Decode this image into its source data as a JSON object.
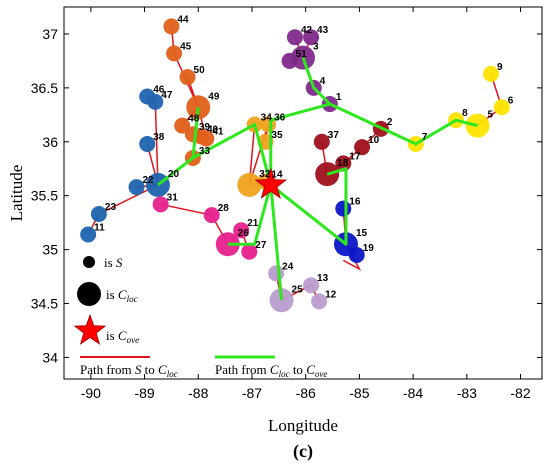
{
  "chart_data": {
    "type": "scatter",
    "xlabel": "Longitude",
    "ylabel": "Latitude",
    "xlim": [
      -90.5,
      -81.6
    ],
    "ylim": [
      33.8,
      37.25
    ],
    "xticks": [
      -90,
      -89,
      -88,
      -87,
      -86,
      -85,
      -84,
      -83,
      -82
    ],
    "yticks": [
      34,
      34.5,
      35,
      35.5,
      36,
      36.5,
      37
    ],
    "caption": "(c)",
    "legend": {
      "s_label": "is S",
      "cloc_label": "is C_loc",
      "cove_label": "is C_ove",
      "red_path_label": "Path from S to C_loc",
      "green_path_label": "Path from C_loc to C_ove"
    },
    "clusters": [
      {
        "color": "#ffe400",
        "members": [
          {
            "id": 9,
            "x": -82.55,
            "y": 36.63,
            "big": false
          },
          {
            "id": 6,
            "x": -82.35,
            "y": 36.32,
            "big": false
          },
          {
            "id": 5,
            "x": -82.8,
            "y": 36.15,
            "big": true
          },
          {
            "id": 8,
            "x": -83.2,
            "y": 36.2,
            "big": false
          },
          {
            "id": 7,
            "x": -83.95,
            "y": 35.98,
            "big": false
          }
        ],
        "center": 5
      },
      {
        "color": "#a0101e",
        "members": [
          {
            "id": 2,
            "x": -84.6,
            "y": 36.12,
            "big": false
          },
          {
            "id": 10,
            "x": -84.95,
            "y": 35.95,
            "big": false
          },
          {
            "id": 17,
            "x": -85.3,
            "y": 35.8,
            "big": false
          },
          {
            "id": 37,
            "x": -85.7,
            "y": 36.0,
            "big": false
          },
          {
            "id": 18,
            "x": -85.6,
            "y": 35.7,
            "big": true
          }
        ],
        "center": 18
      },
      {
        "color": "#7f2b8c",
        "members": [
          {
            "id": 42,
            "x": -86.2,
            "y": 36.97,
            "big": false
          },
          {
            "id": 43,
            "x": -85.9,
            "y": 36.97,
            "big": false
          },
          {
            "id": 51,
            "x": -86.3,
            "y": 36.75,
            "big": false
          },
          {
            "id": 3,
            "x": -86.05,
            "y": 36.78,
            "big": true
          },
          {
            "id": 4,
            "x": -85.85,
            "y": 36.5,
            "big": false
          },
          {
            "id": 1,
            "x": -85.55,
            "y": 36.35,
            "big": false
          }
        ],
        "center": 3
      },
      {
        "color": "#e0601a",
        "members": [
          {
            "id": 44,
            "x": -88.5,
            "y": 37.07,
            "big": false
          },
          {
            "id": 45,
            "x": -88.45,
            "y": 36.82,
            "big": false
          },
          {
            "id": 50,
            "x": -88.2,
            "y": 36.6,
            "big": false
          },
          {
            "id": 49,
            "x": -88.0,
            "y": 36.32,
            "big": true
          },
          {
            "id": 48,
            "x": -88.3,
            "y": 36.15,
            "big": false
          },
          {
            "id": 39,
            "x": -88.1,
            "y": 36.07,
            "big": false
          },
          {
            "id": 40,
            "x": -87.95,
            "y": 36.05,
            "big": false
          },
          {
            "id": 41,
            "x": -87.85,
            "y": 36.03,
            "big": false
          },
          {
            "id": 33,
            "x": -88.1,
            "y": 35.85,
            "big": false
          }
        ],
        "center": 49
      },
      {
        "color": "#1e64b0",
        "members": [
          {
            "id": 46,
            "x": -88.95,
            "y": 36.42,
            "big": false
          },
          {
            "id": 47,
            "x": -88.8,
            "y": 36.37,
            "big": false
          },
          {
            "id": 38,
            "x": -88.95,
            "y": 35.98,
            "big": false
          },
          {
            "id": 20,
            "x": -88.75,
            "y": 35.6,
            "big": true
          },
          {
            "id": 22,
            "x": -89.15,
            "y": 35.58,
            "big": false
          },
          {
            "id": 23,
            "x": -89.85,
            "y": 35.33,
            "big": false
          },
          {
            "id": 11,
            "x": -90.05,
            "y": 35.14,
            "big": false
          }
        ],
        "center": 20
      },
      {
        "color": "#f0a21e",
        "members": [
          {
            "id": 34,
            "x": -86.95,
            "y": 36.16,
            "big": false
          },
          {
            "id": 36,
            "x": -86.7,
            "y": 36.16,
            "big": false
          },
          {
            "id": 35,
            "x": -86.75,
            "y": 36.0,
            "big": false
          },
          {
            "id": 32,
            "x": -87.05,
            "y": 35.6,
            "big": true
          },
          {
            "id": 14,
            "x": -86.75,
            "y": 35.63,
            "big": false
          }
        ],
        "center": 32
      },
      {
        "color": "#e8208e",
        "members": [
          {
            "id": 31,
            "x": -88.7,
            "y": 35.42,
            "big": false
          },
          {
            "id": 28,
            "x": -87.75,
            "y": 35.32,
            "big": false
          },
          {
            "id": 26,
            "x": -87.45,
            "y": 35.05,
            "big": true
          },
          {
            "id": 21,
            "x": -87.2,
            "y": 35.18,
            "big": false
          },
          {
            "id": 27,
            "x": -87.05,
            "y": 34.98,
            "big": false
          }
        ],
        "center": 26
      },
      {
        "color": "#0b16c8",
        "members": [
          {
            "id": 16,
            "x": -85.3,
            "y": 35.38,
            "big": false
          },
          {
            "id": 15,
            "x": -85.25,
            "y": 35.05,
            "big": true
          },
          {
            "id": 19,
            "x": -85.05,
            "y": 34.95,
            "big": false
          }
        ],
        "center": 15
      },
      {
        "color": "#b99ccd",
        "members": [
          {
            "id": 24,
            "x": -86.55,
            "y": 34.78,
            "big": false
          },
          {
            "id": 13,
            "x": -85.9,
            "y": 34.67,
            "big": false
          },
          {
            "id": 25,
            "x": -86.45,
            "y": 34.53,
            "big": true
          },
          {
            "id": 12,
            "x": -85.75,
            "y": 34.52,
            "big": false
          }
        ],
        "center": 25
      }
    ],
    "overall_center": {
      "x": -86.65,
      "y": 35.6
    },
    "green_path_nodes": [
      {
        "x": -86.05,
        "y": 36.78
      },
      {
        "x": -85.85,
        "y": 36.5
      },
      {
        "x": -85.55,
        "y": 36.35
      },
      {
        "x": -86.65,
        "y": 36.2
      },
      {
        "x": -86.65,
        "y": 35.6
      }
    ],
    "green_path_nodes_b": [
      {
        "x": -82.8,
        "y": 36.15
      },
      {
        "x": -83.2,
        "y": 36.2
      },
      {
        "x": -83.95,
        "y": 35.98
      },
      {
        "x": -85.55,
        "y": 36.35
      }
    ],
    "green_path_nodes_c": [
      {
        "x": -88.0,
        "y": 36.32
      },
      {
        "x": -88.1,
        "y": 35.85
      },
      {
        "x": -86.95,
        "y": 36.16
      },
      {
        "x": -86.65,
        "y": 35.6
      }
    ],
    "green_path_nodes_d": [
      {
        "x": -88.75,
        "y": 35.6
      },
      {
        "x": -88.1,
        "y": 35.85
      }
    ],
    "green_path_nodes_e": [
      {
        "x": -85.6,
        "y": 35.7
      },
      {
        "x": -85.25,
        "y": 35.75
      },
      {
        "x": -85.25,
        "y": 35.05
      },
      {
        "x": -86.65,
        "y": 35.6
      }
    ],
    "green_path_nodes_f": [
      {
        "x": -87.45,
        "y": 35.05
      },
      {
        "x": -86.95,
        "y": 35.05
      },
      {
        "x": -86.65,
        "y": 35.6
      }
    ],
    "green_path_nodes_g": [
      {
        "x": -86.45,
        "y": 34.53
      },
      {
        "x": -86.65,
        "y": 35.6
      }
    ],
    "red_paths": [
      [
        -82.55,
        36.63,
        -82.35,
        36.32,
        -82.8,
        36.15,
        -83.2,
        36.2,
        -83.95,
        35.98
      ],
      [
        -84.6,
        36.12,
        -84.95,
        35.95,
        -85.3,
        35.8,
        -85.6,
        35.7,
        -85.7,
        36.0
      ],
      [
        -86.2,
        36.97,
        -86.05,
        36.78,
        -85.9,
        36.97
      ],
      [
        -86.3,
        36.75,
        -86.05,
        36.78
      ],
      [
        -85.55,
        36.35,
        -84.6,
        36.12
      ],
      [
        -88.5,
        37.07,
        -88.45,
        36.82,
        -88.0,
        36.32,
        -88.2,
        36.6
      ],
      [
        -88.3,
        36.15,
        -88.0,
        36.32,
        -87.85,
        36.03,
        -88.1,
        36.07,
        -87.95,
        36.05
      ],
      [
        -88.1,
        35.85,
        -88.0,
        36.32
      ],
      [
        -88.95,
        36.42,
        -88.8,
        36.37,
        -88.75,
        35.6,
        -88.95,
        35.98
      ],
      [
        -89.15,
        35.58,
        -88.75,
        35.6,
        -89.85,
        35.33,
        -90.05,
        35.14
      ],
      [
        -86.95,
        36.16,
        -87.05,
        35.6,
        -86.7,
        36.16,
        -86.75,
        36.0
      ],
      [
        -86.75,
        35.63,
        -87.05,
        35.6
      ],
      [
        -88.7,
        35.42,
        -87.75,
        35.32,
        -87.45,
        35.05,
        -87.2,
        35.18,
        -87.05,
        34.98
      ],
      [
        -85.3,
        35.38,
        -85.25,
        35.05,
        -85.05,
        34.95
      ],
      [
        -86.55,
        34.78,
        -86.45,
        34.53,
        -85.9,
        34.67,
        -85.75,
        34.52
      ],
      [
        -85.25,
        35.05,
        -85.0,
        34.82,
        -85.3,
        34.9
      ]
    ]
  }
}
